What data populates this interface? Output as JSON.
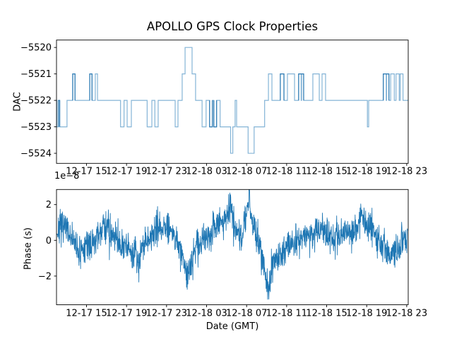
{
  "title": "APOLLO GPS Clock Properties",
  "colors": {
    "background": "#ffffff",
    "axis": "#000000",
    "text": "#000000",
    "line": "#1f77b4",
    "step_light": "#84b4d6",
    "step_dark": "#2e7bb4"
  },
  "x_axis": {
    "label": "Date (GMT)",
    "tick_labels": [
      "12-17 15",
      "12-17 19",
      "12-17 23",
      "12-18 03",
      "12-18 07",
      "12-18 11",
      "12-18 15",
      "12-18 19",
      "12-18 23"
    ],
    "tick_hours": [
      3,
      7,
      11,
      15,
      19,
      23,
      27,
      31,
      35
    ],
    "hour_range": [
      0,
      35.15
    ]
  },
  "chart_data": [
    {
      "type": "step",
      "name": "dac",
      "ylabel": "DAC",
      "yticks": [
        -5520,
        -5521,
        -5522,
        -5523,
        -5524
      ],
      "ylim": [
        -5524.38,
        -5519.72
      ],
      "end_hour": 35.15,
      "steps": [
        [
          0,
          -5522
        ],
        [
          0.05,
          -5523
        ],
        [
          0.2,
          -5522
        ],
        [
          0.32,
          -5523
        ],
        [
          1.05,
          -5522
        ],
        [
          1.62,
          -5521
        ],
        [
          1.85,
          -5522
        ],
        [
          3.32,
          -5521
        ],
        [
          3.55,
          -5522
        ],
        [
          3.88,
          -5521
        ],
        [
          4.1,
          -5522
        ],
        [
          6.4,
          -5523
        ],
        [
          6.75,
          -5522
        ],
        [
          7.06,
          -5523
        ],
        [
          7.48,
          -5522
        ],
        [
          9.06,
          -5523
        ],
        [
          9.53,
          -5522
        ],
        [
          9.83,
          -5523
        ],
        [
          10.16,
          -5522
        ],
        [
          11.86,
          -5523
        ],
        [
          12.14,
          -5522
        ],
        [
          12.56,
          -5521
        ],
        [
          12.85,
          -5520
        ],
        [
          13.55,
          -5521
        ],
        [
          13.9,
          -5522
        ],
        [
          14.55,
          -5523
        ],
        [
          14.95,
          -5522
        ],
        [
          15.3,
          -5523
        ],
        [
          15.58,
          -5522
        ],
        [
          15.72,
          -5523
        ],
        [
          16.0,
          -5522
        ],
        [
          16.35,
          -5523
        ],
        [
          17.4,
          -5524
        ],
        [
          17.62,
          -5523
        ],
        [
          17.85,
          -5522
        ],
        [
          18.0,
          -5523
        ],
        [
          19.15,
          -5524
        ],
        [
          19.75,
          -5523
        ],
        [
          20.8,
          -5522
        ],
        [
          21.18,
          -5521
        ],
        [
          21.53,
          -5522
        ],
        [
          22.37,
          -5521
        ],
        [
          22.73,
          -5522
        ],
        [
          23.08,
          -5521
        ],
        [
          23.79,
          -5522
        ],
        [
          24.2,
          -5521
        ],
        [
          24.45,
          -5522
        ],
        [
          24.5,
          -5521
        ],
        [
          24.7,
          -5522
        ],
        [
          25.62,
          -5521
        ],
        [
          26.26,
          -5522
        ],
        [
          26.54,
          -5521
        ],
        [
          26.89,
          -5522
        ],
        [
          31.07,
          -5523
        ],
        [
          31.2,
          -5522
        ],
        [
          32.66,
          -5521
        ],
        [
          32.95,
          -5522
        ],
        [
          33.0,
          -5521
        ],
        [
          33.22,
          -5522
        ],
        [
          33.4,
          -5521
        ],
        [
          33.76,
          -5522
        ],
        [
          33.93,
          -5521
        ],
        [
          34.25,
          -5522
        ],
        [
          34.35,
          -5521
        ],
        [
          34.63,
          -5522
        ]
      ],
      "dark_pulses": [
        [
          0.2,
          0.32,
          -5522,
          -5523
        ],
        [
          1.62,
          1.85,
          -5521,
          -5522
        ],
        [
          3.32,
          3.55,
          -5521,
          -5522
        ],
        [
          15.3,
          15.58,
          -5523,
          -5522
        ],
        [
          15.72,
          16.0,
          -5523,
          -5522
        ],
        [
          22.37,
          22.73,
          -5521,
          -5522
        ],
        [
          24.2,
          24.7,
          -5521,
          -5522
        ],
        [
          32.66,
          33.22,
          -5521,
          -5522
        ]
      ]
    },
    {
      "type": "line",
      "name": "phase",
      "ylabel": "Phase (s)",
      "offset_text": "1e−8",
      "yticks": [
        -2,
        0,
        2
      ],
      "ylim": [
        -3.605,
        2.846
      ],
      "units": "1e-8 s",
      "noise_sigma": 0.45,
      "spike_prob": 0.015,
      "points": 1500,
      "seed": 7,
      "baseline": [
        [
          0,
          0.55
        ],
        [
          0.7,
          0.8
        ],
        [
          1.4,
          0.3
        ],
        [
          2.0,
          -0.5
        ],
        [
          2.4,
          -0.8
        ],
        [
          3.0,
          -0.25
        ],
        [
          3.7,
          -0.15
        ],
        [
          4.3,
          0.3
        ],
        [
          4.9,
          0.9
        ],
        [
          5.5,
          0.5
        ],
        [
          6.2,
          -0.2
        ],
        [
          7.0,
          -0.35
        ],
        [
          7.8,
          -0.6
        ],
        [
          8.1,
          -1.3
        ],
        [
          8.6,
          -0.2
        ],
        [
          9.4,
          0.1
        ],
        [
          10.1,
          0.7
        ],
        [
          10.9,
          0.9
        ],
        [
          11.6,
          0.5
        ],
        [
          12.2,
          -0.2
        ],
        [
          12.7,
          -1.2
        ],
        [
          13.05,
          -2.1
        ],
        [
          13.5,
          -1.0
        ],
        [
          14.1,
          -0.2
        ],
        [
          14.8,
          0.1
        ],
        [
          15.5,
          0.4
        ],
        [
          16.2,
          0.9
        ],
        [
          16.8,
          1.2
        ],
        [
          17.2,
          1.5
        ],
        [
          17.45,
          2.4
        ],
        [
          17.7,
          0.9
        ],
        [
          18.1,
          0.2
        ],
        [
          18.6,
          0.5
        ],
        [
          19.0,
          1.3
        ],
        [
          19.2,
          2.7
        ],
        [
          19.5,
          1.2
        ],
        [
          20.0,
          0.3
        ],
        [
          20.5,
          -0.8
        ],
        [
          21.0,
          -2.2
        ],
        [
          21.15,
          -2.8
        ],
        [
          21.5,
          -1.4
        ],
        [
          22.0,
          -0.9
        ],
        [
          22.7,
          -0.6
        ],
        [
          23.5,
          -0.2
        ],
        [
          24.3,
          0.1
        ],
        [
          25.0,
          0.2
        ],
        [
          25.8,
          0.3
        ],
        [
          26.5,
          0.8
        ],
        [
          27.0,
          0.4
        ],
        [
          27.7,
          0.1
        ],
        [
          28.4,
          0.3
        ],
        [
          29.2,
          0.4
        ],
        [
          30.0,
          0.6
        ],
        [
          30.5,
          1.5
        ],
        [
          30.9,
          0.8
        ],
        [
          31.5,
          0.6
        ],
        [
          32.2,
          -0.1
        ],
        [
          32.8,
          -0.5
        ],
        [
          33.4,
          -0.9
        ],
        [
          33.9,
          -0.4
        ],
        [
          34.5,
          -0.1
        ],
        [
          35.1,
          0.1
        ]
      ]
    }
  ]
}
